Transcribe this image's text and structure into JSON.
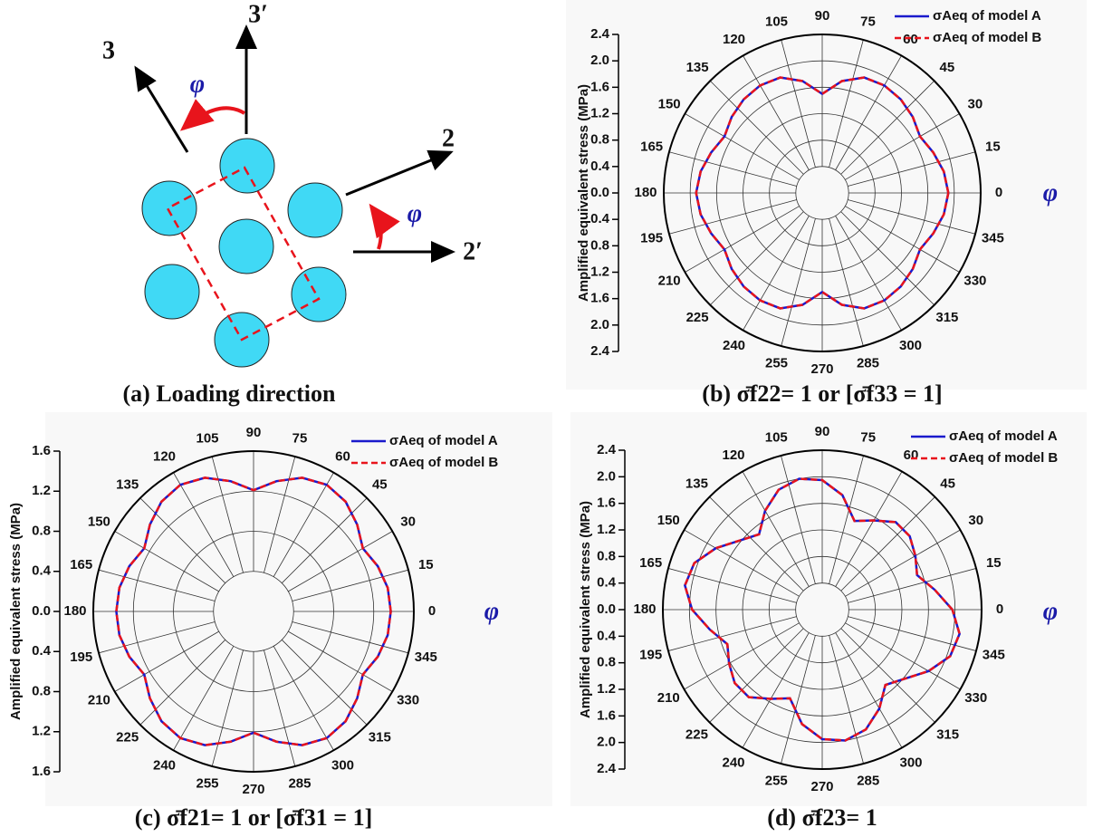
{
  "diagram": {
    "labels": {
      "axis3": "3",
      "axis3p": "3′",
      "axis2": "2",
      "axis2p": "2′",
      "phi_top": "φ",
      "phi_right": "φ"
    },
    "caption": "(a) Loading direction"
  },
  "chart_data": [
    {
      "type": "polar",
      "caption": "(b) σ̄f22= 1 or [σ̄f33 = 1]",
      "radial_axis_label": "Amplified equivalent stress (MPa)",
      "angle_label": "φ",
      "x": [
        0,
        10,
        20,
        30,
        40,
        50,
        60,
        70,
        80,
        90,
        100,
        110,
        120,
        130,
        140,
        150,
        160,
        170,
        180,
        190,
        200,
        210,
        220,
        230,
        240,
        250,
        260,
        270,
        280,
        290,
        300,
        310,
        320,
        330,
        340,
        350,
        360
      ],
      "xlim": [
        0,
        360
      ],
      "xticks": [
        0,
        15,
        30,
        45,
        60,
        75,
        90,
        105,
        120,
        135,
        150,
        165,
        180,
        195,
        210,
        225,
        240,
        255,
        270,
        285,
        300,
        315,
        330,
        345
      ],
      "ylim": [
        0,
        2.4
      ],
      "yticks": [
        {
          "value": 0,
          "label": "0.0"
        },
        0.4,
        0.8,
        1.2,
        1.6,
        {
          "value": 2,
          "label": "2.0"
        },
        2.4
      ],
      "grid": true,
      "series": [
        {
          "name": "σAeq of model A",
          "color": "#1a1acc",
          "line_style": "solid",
          "values": [
            1.91,
            1.87,
            1.79,
            1.71,
            1.79,
            1.85,
            1.88,
            1.86,
            1.72,
            1.5,
            1.72,
            1.86,
            1.88,
            1.85,
            1.79,
            1.71,
            1.79,
            1.87,
            1.91,
            1.87,
            1.79,
            1.71,
            1.79,
            1.85,
            1.88,
            1.86,
            1.72,
            1.5,
            1.72,
            1.86,
            1.88,
            1.85,
            1.79,
            1.71,
            1.79,
            1.87,
            1.91
          ]
        },
        {
          "name": "σAeq of model B",
          "color": "#e8141c",
          "line_style": "dashed",
          "values": [
            1.91,
            1.87,
            1.79,
            1.71,
            1.79,
            1.85,
            1.88,
            1.86,
            1.72,
            1.5,
            1.72,
            1.86,
            1.88,
            1.85,
            1.79,
            1.71,
            1.79,
            1.87,
            1.91,
            1.87,
            1.79,
            1.71,
            1.79,
            1.85,
            1.88,
            1.86,
            1.72,
            1.5,
            1.72,
            1.86,
            1.88,
            1.85,
            1.79,
            1.71,
            1.79,
            1.87,
            1.91
          ]
        }
      ]
    },
    {
      "type": "polar",
      "caption": "(c) σ̄f21= 1 or [σ̄f31 = 1]",
      "radial_axis_label": "Amplified equivalent stress (MPa)",
      "angle_label": "φ",
      "x": [
        0,
        10,
        20,
        30,
        40,
        50,
        60,
        70,
        80,
        90,
        100,
        110,
        120,
        130,
        140,
        150,
        160,
        170,
        180,
        190,
        200,
        210,
        220,
        230,
        240,
        250,
        260,
        270,
        280,
        290,
        300,
        310,
        320,
        330,
        340,
        350,
        360
      ],
      "xlim": [
        0,
        360
      ],
      "xticks": [
        0,
        15,
        30,
        45,
        60,
        75,
        90,
        105,
        120,
        135,
        150,
        165,
        180,
        195,
        210,
        225,
        240,
        255,
        270,
        285,
        300,
        315,
        330,
        345
      ],
      "ylim": [
        0,
        1.6
      ],
      "yticks": [
        {
          "value": 0,
          "label": "0.0"
        },
        0.4,
        0.8,
        1.2,
        1.6
      ],
      "grid": true,
      "series": [
        {
          "name": "σAeq of model A",
          "color": "#1a1acc",
          "line_style": "solid",
          "values": [
            1.37,
            1.36,
            1.32,
            1.26,
            1.35,
            1.43,
            1.46,
            1.42,
            1.32,
            1.21,
            1.32,
            1.42,
            1.46,
            1.43,
            1.35,
            1.26,
            1.32,
            1.36,
            1.37,
            1.36,
            1.32,
            1.26,
            1.35,
            1.43,
            1.46,
            1.42,
            1.32,
            1.21,
            1.32,
            1.42,
            1.46,
            1.43,
            1.35,
            1.26,
            1.32,
            1.36,
            1.37
          ]
        },
        {
          "name": "σAeq of model B",
          "color": "#e8141c",
          "line_style": "dashed",
          "values": [
            1.37,
            1.36,
            1.32,
            1.26,
            1.35,
            1.43,
            1.46,
            1.42,
            1.32,
            1.21,
            1.32,
            1.42,
            1.46,
            1.43,
            1.35,
            1.26,
            1.32,
            1.36,
            1.37,
            1.36,
            1.32,
            1.26,
            1.35,
            1.43,
            1.46,
            1.42,
            1.32,
            1.21,
            1.32,
            1.42,
            1.46,
            1.43,
            1.35,
            1.26,
            1.32,
            1.36,
            1.37
          ]
        }
      ]
    },
    {
      "type": "polar",
      "caption": "(d) σ̄f23= 1",
      "radial_axis_label": "Amplified equivalent stress (MPa)",
      "angle_label": "φ",
      "x": [
        0,
        10,
        20,
        30,
        40,
        50,
        60,
        70,
        80,
        90,
        100,
        110,
        120,
        130,
        140,
        150,
        160,
        170,
        180,
        190,
        200,
        210,
        220,
        230,
        240,
        250,
        260,
        270,
        280,
        290,
        300,
        310,
        320,
        330,
        340,
        350,
        360
      ],
      "xlim": [
        0,
        360
      ],
      "xticks": [
        0,
        15,
        30,
        45,
        60,
        75,
        90,
        105,
        120,
        135,
        150,
        165,
        180,
        195,
        210,
        225,
        240,
        255,
        270,
        285,
        300,
        315,
        330,
        345
      ],
      "ylim": [
        0,
        2.4
      ],
      "yticks": [
        {
          "value": 0,
          "label": "0.0"
        },
        0.4,
        0.8,
        1.2,
        1.6,
        {
          "value": 2,
          "label": "2.0"
        },
        2.4
      ],
      "grid": true,
      "series": [
        {
          "name": "σAeq of model A",
          "color": "#1a1acc",
          "line_style": "solid",
          "values": [
            1.96,
            1.72,
            1.52,
            1.62,
            1.72,
            1.72,
            1.55,
            1.42,
            1.75,
            1.95,
            2.0,
            1.92,
            1.72,
            1.48,
            1.62,
            1.85,
            2.05,
            2.1,
            1.96,
            1.72,
            1.52,
            1.62,
            1.72,
            1.72,
            1.55,
            1.42,
            1.75,
            1.95,
            2.0,
            1.92,
            1.72,
            1.48,
            1.62,
            1.85,
            2.05,
            2.1,
            1.96
          ]
        },
        {
          "name": "σAeq of model B",
          "color": "#e8141c",
          "line_style": "dashed",
          "values": [
            1.96,
            1.72,
            1.52,
            1.62,
            1.72,
            1.72,
            1.55,
            1.42,
            1.75,
            1.95,
            2.0,
            1.92,
            1.72,
            1.48,
            1.62,
            1.85,
            2.05,
            2.1,
            1.96,
            1.72,
            1.52,
            1.62,
            1.72,
            1.72,
            1.55,
            1.42,
            1.75,
            1.95,
            2.0,
            1.92,
            1.72,
            1.48,
            1.62,
            1.85,
            2.05,
            2.1,
            1.96
          ]
        }
      ]
    }
  ]
}
